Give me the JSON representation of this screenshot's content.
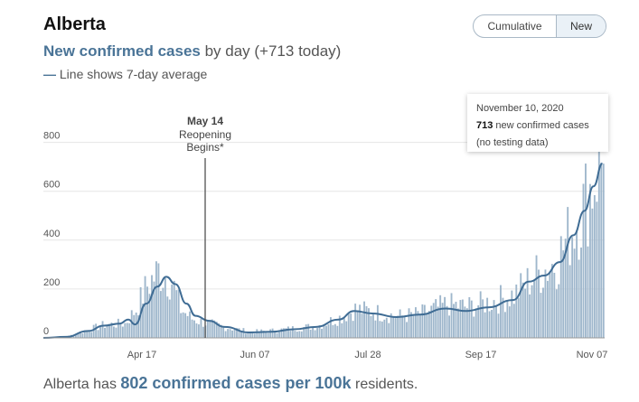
{
  "header": {
    "region": "Alberta",
    "toggle": {
      "cumulative_label": "Cumulative",
      "new_label": "New",
      "selected": "New"
    }
  },
  "subtitle": {
    "strong": "New confirmed cases",
    "rest": " by day (+713 today)"
  },
  "line_note": {
    "dash": "—",
    "text": " Line shows 7-day average"
  },
  "annotation": {
    "date": "May 14",
    "line1": "Reopening",
    "line2": "Begins*"
  },
  "tooltip": {
    "date": "November 10, 2020",
    "value": "713",
    "text": " new confirmed cases",
    "note": "(no testing data)"
  },
  "footer": {
    "pre": "Alberta has ",
    "strong": "802 confirmed cases per 100k",
    "post": " residents."
  },
  "colors": {
    "bar": "#9fb7cc",
    "line": "#3f6c94",
    "accent": "#4a7497",
    "grid": "#e6e6e6"
  },
  "chart_data": {
    "type": "bar",
    "ylim": [
      0,
      850
    ],
    "yticks": [
      0,
      200,
      400,
      600,
      800
    ],
    "xticks": [
      "Apr 17",
      "Jun 07",
      "Jul 28",
      "Sep 17",
      "Nov 07"
    ],
    "x_start": "2020-03-05",
    "x_end": "2020-11-10",
    "grid": true,
    "series": [
      {
        "kind": "bar",
        "anchors": [
          [
            "2020-03-05",
            0
          ],
          [
            "2020-03-15",
            5
          ],
          [
            "2020-03-25",
            35
          ],
          [
            "2020-04-01",
            55
          ],
          [
            "2020-04-10",
            60
          ],
          [
            "2020-04-15",
            120
          ],
          [
            "2020-04-20",
            220
          ],
          [
            "2020-04-25",
            280
          ],
          [
            "2020-04-28",
            260
          ],
          [
            "2020-05-01",
            240
          ],
          [
            "2020-05-05",
            120
          ],
          [
            "2020-05-10",
            80
          ],
          [
            "2020-05-15",
            65
          ],
          [
            "2020-05-25",
            45
          ],
          [
            "2020-06-05",
            25
          ],
          [
            "2020-06-15",
            30
          ],
          [
            "2020-06-25",
            40
          ],
          [
            "2020-07-05",
            50
          ],
          [
            "2020-07-15",
            85
          ],
          [
            "2020-07-22",
            120
          ],
          [
            "2020-07-30",
            110
          ],
          [
            "2020-08-10",
            90
          ],
          [
            "2020-08-20",
            100
          ],
          [
            "2020-09-01",
            140
          ],
          [
            "2020-09-10",
            130
          ],
          [
            "2020-09-20",
            150
          ],
          [
            "2020-10-01",
            180
          ],
          [
            "2020-10-10",
            260
          ],
          [
            "2020-10-20",
            320
          ],
          [
            "2020-10-25",
            420
          ],
          [
            "2020-11-01",
            550
          ],
          [
            "2020-11-06",
            680
          ],
          [
            "2020-11-08",
            760
          ],
          [
            "2020-11-09",
            740
          ],
          [
            "2020-11-10",
            713
          ]
        ]
      },
      {
        "kind": "line",
        "points": [
          [
            "2020-03-05",
            0
          ],
          [
            "2020-03-15",
            4
          ],
          [
            "2020-03-25",
            28
          ],
          [
            "2020-04-01",
            50
          ],
          [
            "2020-04-08",
            58
          ],
          [
            "2020-04-12",
            75
          ],
          [
            "2020-04-15",
            55
          ],
          [
            "2020-04-20",
            140
          ],
          [
            "2020-04-25",
            210
          ],
          [
            "2020-04-29",
            250
          ],
          [
            "2020-05-03",
            220
          ],
          [
            "2020-05-08",
            140
          ],
          [
            "2020-05-12",
            90
          ],
          [
            "2020-05-18",
            70
          ],
          [
            "2020-05-25",
            45
          ],
          [
            "2020-06-05",
            22
          ],
          [
            "2020-06-15",
            25
          ],
          [
            "2020-06-25",
            35
          ],
          [
            "2020-07-05",
            45
          ],
          [
            "2020-07-15",
            75
          ],
          [
            "2020-07-22",
            110
          ],
          [
            "2020-07-30",
            100
          ],
          [
            "2020-08-10",
            85
          ],
          [
            "2020-08-20",
            95
          ],
          [
            "2020-09-01",
            120
          ],
          [
            "2020-09-10",
            110
          ],
          [
            "2020-09-20",
            125
          ],
          [
            "2020-10-01",
            155
          ],
          [
            "2020-10-08",
            230
          ],
          [
            "2020-10-15",
            255
          ],
          [
            "2020-10-22",
            310
          ],
          [
            "2020-10-28",
            420
          ],
          [
            "2020-11-02",
            520
          ],
          [
            "2020-11-06",
            620
          ],
          [
            "2020-11-10",
            713
          ]
        ]
      }
    ]
  }
}
